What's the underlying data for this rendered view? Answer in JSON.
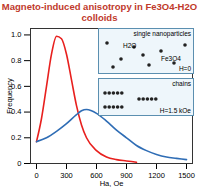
{
  "chart_data": {
    "type": "line",
    "title": "Magneto-induced anisotropy in Fe3O4-H2O colloids",
    "x_label": "Ha, Oe",
    "y_label": "Frequency",
    "xlim": [
      -60,
      1560
    ],
    "ylim": [
      0,
      1.05
    ],
    "xticks": [
      0,
      300,
      600,
      900,
      1200,
      1500
    ],
    "yticks": [
      0,
      0.2,
      0.4,
      0.6,
      0.8,
      {
        "value": 1,
        "label": "1.0"
      }
    ],
    "series": [
      {
        "color": "#e8201e",
        "x": [
          0,
          50,
          100,
          150,
          200,
          250,
          300,
          350,
          400,
          450,
          500,
          600,
          700,
          800,
          900,
          1000
        ],
        "values": [
          0.17,
          0.35,
          0.6,
          0.85,
          0.99,
          0.97,
          0.85,
          0.65,
          0.45,
          0.3,
          0.2,
          0.1,
          0.05,
          0.03,
          0.02,
          0.01
        ]
      },
      {
        "color": "#2f6db5",
        "x": [
          0,
          100,
          200,
          300,
          400,
          450,
          500,
          550,
          600,
          700,
          800,
          900,
          1000,
          1100,
          1200,
          1300,
          1400,
          1500
        ],
        "values": [
          0.17,
          0.2,
          0.25,
          0.31,
          0.38,
          0.41,
          0.42,
          0.41,
          0.39,
          0.33,
          0.26,
          0.2,
          0.14,
          0.1,
          0.07,
          0.05,
          0.04,
          0.03
        ]
      }
    ],
    "annotations": [
      "single nanoparticles",
      "H2O",
      "Fe3O4",
      "H=0",
      "chains",
      "H=1.5 kOe"
    ]
  }
}
